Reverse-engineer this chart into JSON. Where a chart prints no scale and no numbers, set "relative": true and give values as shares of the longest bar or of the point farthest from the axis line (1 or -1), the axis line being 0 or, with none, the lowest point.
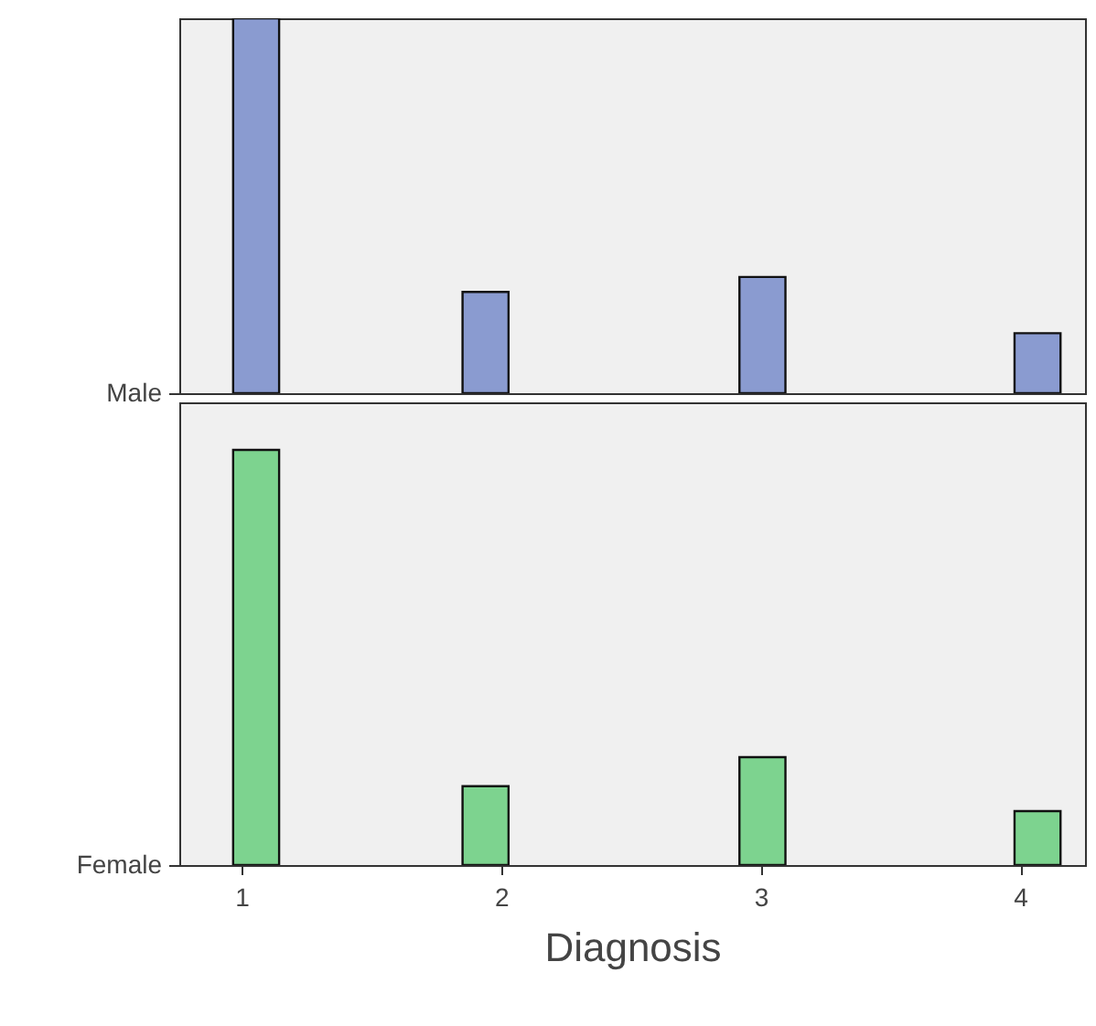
{
  "chart_data": [
    {
      "type": "bar",
      "relative": true,
      "tick_labels": false,
      "xlim": [
        0.76,
        4.25
      ],
      "xticks": [
        1,
        2,
        3,
        4
      ],
      "ylabel": "Male",
      "x": [
        1.056,
        1.94,
        3.007,
        4.067
      ],
      "series": [
        {
          "color": "#8a9bd0",
          "values": [
            1,
            0.27,
            0.31,
            0.16
          ]
        }
      ]
    },
    {
      "type": "bar",
      "relative": true,
      "xlim": [
        0.76,
        4.25
      ],
      "xticks": [
        1,
        2,
        3,
        4
      ],
      "xlabel": "Diagnosis",
      "ylabel": "Female",
      "x": [
        1.056,
        1.94,
        3.007,
        4.067
      ],
      "series": [
        {
          "color": "#7dd38f",
          "values": [
            1,
            0.19,
            0.26,
            0.13
          ]
        }
      ]
    }
  ]
}
